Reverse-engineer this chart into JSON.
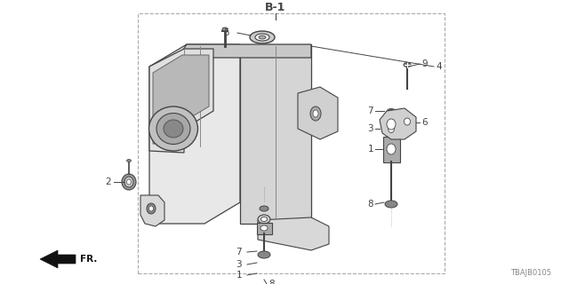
{
  "title": "B-1",
  "part_number": "TBAJB0105",
  "fr_label": "FR.",
  "bg_color": "#ffffff",
  "border_color": "#aaaaaa",
  "line_color": "#444444",
  "fig_w": 6.4,
  "fig_h": 3.2,
  "dpi": 100
}
